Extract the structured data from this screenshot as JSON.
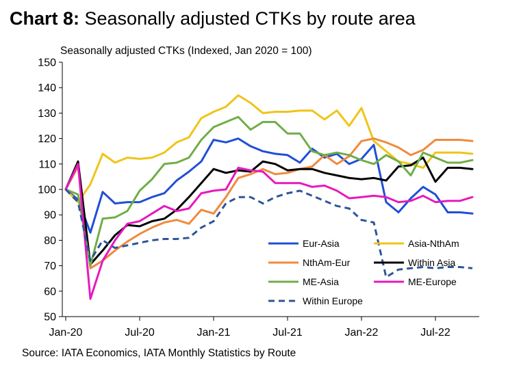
{
  "title": {
    "bold": "Chart 8:",
    "rest": " Seasonally adjusted CTKs by route area"
  },
  "source": "Source: IATA Economics, IATA Monthly Statistics by Route",
  "chart_data": {
    "type": "line",
    "ylabel": "Seasonally adjusted CTKs (Indexed, Jan 2020 = 100)",
    "ylim": [
      50,
      150
    ],
    "yticks": [
      50,
      60,
      70,
      80,
      90,
      100,
      110,
      120,
      130,
      140,
      150
    ],
    "xticks": [
      "Jan-20",
      "Jul-20",
      "Jan-21",
      "Jul-21",
      "Jan-22",
      "Jul-22"
    ],
    "x": [
      "2020-01",
      "2020-02",
      "2020-03",
      "2020-04",
      "2020-05",
      "2020-06",
      "2020-07",
      "2020-08",
      "2020-09",
      "2020-10",
      "2020-11",
      "2020-12",
      "2021-01",
      "2021-02",
      "2021-03",
      "2021-04",
      "2021-05",
      "2021-06",
      "2021-07",
      "2021-08",
      "2021-09",
      "2021-10",
      "2021-11",
      "2021-12",
      "2022-01",
      "2022-02",
      "2022-03",
      "2022-04",
      "2022-05",
      "2022-06",
      "2022-07",
      "2022-08",
      "2022-09",
      "2022-10"
    ],
    "grid": false,
    "legend": "bottom-right",
    "series": [
      {
        "name": "Eur-Asia",
        "color": "#1f4fd6",
        "dash": false,
        "values": [
          100,
          96,
          83,
          99,
          94.5,
          95,
          95,
          97,
          98.5,
          103.5,
          107,
          111,
          119.5,
          118.5,
          120,
          117,
          115,
          114,
          113.5,
          110.5,
          116,
          112.5,
          114,
          110,
          112,
          117.5,
          95,
          91,
          96.5,
          101,
          98,
          91,
          91,
          90.5
        ]
      },
      {
        "name": "Asia-NthAm",
        "color": "#f0c419",
        "dash": false,
        "values": [
          100,
          95,
          102,
          114,
          110.5,
          112.5,
          112,
          112.5,
          114.5,
          118.5,
          120.5,
          128,
          130.5,
          132.5,
          137,
          134,
          130,
          130.5,
          130.5,
          131,
          131,
          127.5,
          131,
          125,
          132,
          119,
          115,
          111,
          110,
          108.5,
          114.5,
          114.5,
          114.5,
          114
        ]
      },
      {
        "name": "NthAm-Eur",
        "color": "#f08a3c",
        "dash": false,
        "values": [
          100,
          109,
          69,
          72,
          76,
          79.5,
          82.5,
          85,
          87,
          88,
          86.5,
          92,
          90.5,
          97,
          104.5,
          106,
          108,
          106,
          106.5,
          108,
          109,
          113.5,
          110,
          113,
          119,
          120,
          118.5,
          116.5,
          113.5,
          115.5,
          119.5,
          119.5,
          119.5,
          119
        ]
      },
      {
        "name": "Within Asia",
        "color": "#000000",
        "dash": false,
        "values": [
          100,
          111,
          70.5,
          76,
          82,
          86,
          85.5,
          87.5,
          88.5,
          92,
          97,
          102.5,
          108,
          106.5,
          107.5,
          107,
          111,
          110,
          107.5,
          108,
          108,
          106.5,
          105.5,
          104.5,
          104,
          104.5,
          103.5,
          109,
          109.5,
          112.5,
          103,
          108.5,
          108.5,
          108
        ]
      },
      {
        "name": "ME-Asia",
        "color": "#70ad47",
        "dash": false,
        "values": [
          100,
          98,
          70,
          88.5,
          89,
          91.5,
          99.5,
          104,
          110,
          110.5,
          112.5,
          119.5,
          124.5,
          126.5,
          128.5,
          123.5,
          126.5,
          126.5,
          122,
          122,
          115,
          113.5,
          114.5,
          113.5,
          111.5,
          110,
          113.5,
          111,
          105.5,
          114.5,
          112.5,
          110.5,
          110.5,
          111.5
        ]
      },
      {
        "name": "ME-Europe",
        "color": "#e619be",
        "dash": false,
        "values": [
          100,
          110,
          57,
          72,
          80,
          86.5,
          87.5,
          90.5,
          93.5,
          91.5,
          92.5,
          98.5,
          99.5,
          100,
          108.5,
          107.5,
          107,
          102.5,
          102.5,
          102.5,
          101,
          101.5,
          99.5,
          96.5,
          97,
          97.5,
          97,
          95,
          95.5,
          97.5,
          95,
          95.5,
          95.5,
          97
        ]
      },
      {
        "name": "Within Europe",
        "color": "#2f5597",
        "dash": true,
        "values": [
          100,
          95,
          72,
          80,
          77,
          78,
          79,
          80,
          80.5,
          80.5,
          81,
          85,
          87.5,
          94.5,
          97,
          97,
          94.5,
          97,
          98.5,
          99.5,
          97.5,
          95.5,
          93.5,
          92.5,
          88,
          87,
          65.5,
          68.5,
          69,
          69.5,
          69,
          69.5,
          69.5,
          69
        ]
      }
    ]
  }
}
